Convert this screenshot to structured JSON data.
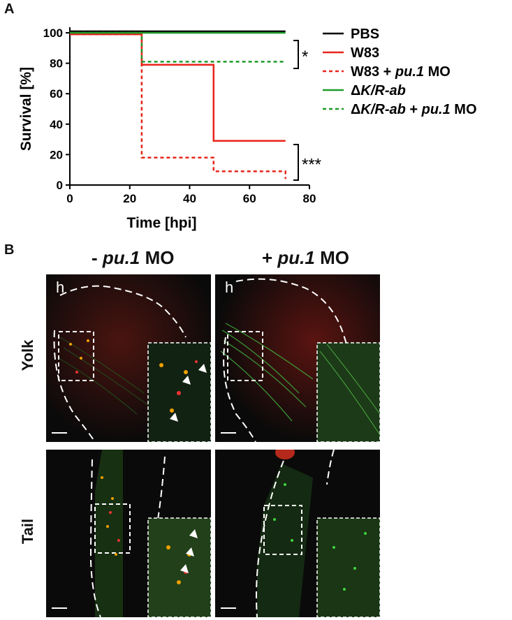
{
  "panel_a": {
    "letter": "A"
  },
  "panel_b": {
    "letter": "B",
    "col_titles": [
      {
        "prefix": "- ",
        "italic": "pu.1",
        "suffix": " MO"
      },
      {
        "prefix": "+ ",
        "italic": "pu.1",
        "suffix": " MO"
      }
    ],
    "row_titles": [
      "Yolk",
      "Tail"
    ],
    "head_label": "h"
  },
  "chart_data": {
    "type": "line",
    "title": "",
    "xlabel": "Time [hpi]",
    "ylabel": "Survival [%]",
    "xlim": [
      0,
      80
    ],
    "ylim": [
      0,
      100
    ],
    "xticks": [
      0,
      20,
      40,
      60,
      80
    ],
    "yticks": [
      0,
      20,
      40,
      60,
      80,
      100
    ],
    "step": true,
    "series": [
      {
        "name": "PBS",
        "name_parts": [
          {
            "t": "PBS",
            "i": false
          }
        ],
        "color": "#000000",
        "dash": false,
        "x": [
          0,
          72
        ],
        "y": [
          101,
          101
        ]
      },
      {
        "name": "W83",
        "name_parts": [
          {
            "t": "W83",
            "i": false
          }
        ],
        "color": "#e8241b",
        "dash": false,
        "x": [
          0,
          24,
          48,
          72
        ],
        "y": [
          99,
          79,
          29,
          29
        ]
      },
      {
        "name": "W83 + pu.1 MO",
        "name_parts": [
          {
            "t": "W83 + ",
            "i": false
          },
          {
            "t": "pu.1",
            "i": true
          },
          {
            "t": " MO",
            "i": false
          }
        ],
        "color": "#e8241b",
        "dash": true,
        "x": [
          0,
          24,
          48,
          72
        ],
        "y": [
          99,
          18,
          9,
          4
        ]
      },
      {
        "name": "ΔK/R-ab",
        "name_parts": [
          {
            "t": "Δ",
            "i": false
          },
          {
            "t": "K/R-ab",
            "i": true
          }
        ],
        "color": "#1f9a2a",
        "dash": false,
        "x": [
          0,
          72
        ],
        "y": [
          100,
          100
        ]
      },
      {
        "name": "ΔK/R-ab + pu.1 MO",
        "name_parts": [
          {
            "t": "Δ",
            "i": false
          },
          {
            "t": "K/R-ab",
            "i": true
          },
          {
            "t": " + ",
            "i": false
          },
          {
            "t": "pu.1",
            "i": true
          },
          {
            "t": " MO",
            "i": false
          }
        ],
        "color": "#1f9a2a",
        "dash": true,
        "x": [
          0,
          24,
          72
        ],
        "y": [
          100,
          81,
          81
        ]
      }
    ],
    "annotations": [
      "*",
      "***"
    ],
    "legend_position": "right"
  }
}
